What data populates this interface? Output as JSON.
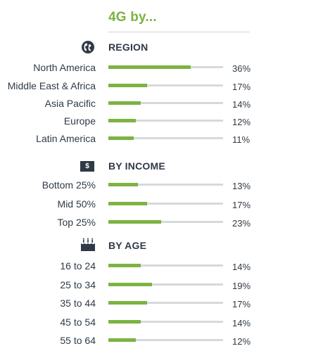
{
  "title": "4G by...",
  "sections": [
    {
      "header": "REGION",
      "icon": "globe-icon",
      "rows": [
        {
          "label": "North America",
          "value": 36,
          "text": "36%"
        },
        {
          "label": "Middle East & Africa",
          "value": 17,
          "text": "17%"
        },
        {
          "label": "Asia Pacific",
          "value": 14,
          "text": "14%"
        },
        {
          "label": "Europe",
          "value": 12,
          "text": "12%"
        },
        {
          "label": "Latin America",
          "value": 11,
          "text": "11%"
        }
      ]
    },
    {
      "header": "BY INCOME",
      "icon": "dollar-icon",
      "icon_text": "$",
      "rows": [
        {
          "label": "Bottom 25%",
          "value": 13,
          "text": "13%"
        },
        {
          "label": "Mid 50%",
          "value": 17,
          "text": "17%"
        },
        {
          "label": "Top 25%",
          "value": 23,
          "text": "23%"
        }
      ]
    },
    {
      "header": "BY AGE",
      "icon": "birthday-cake-icon",
      "rows": [
        {
          "label": "16 to 24",
          "value": 14,
          "text": "14%"
        },
        {
          "label": "25 to 34",
          "value": 19,
          "text": "19%"
        },
        {
          "label": "35 to 44",
          "value": 17,
          "text": "17%"
        },
        {
          "label": "45 to 54",
          "value": 14,
          "text": "14%"
        },
        {
          "label": "55 to 64",
          "value": 12,
          "text": "12%"
        }
      ]
    }
  ],
  "colors": {
    "accent": "#7cb342",
    "track": "#d6d9dc",
    "text": "#2f3a46"
  },
  "chart_data": {
    "type": "bar",
    "orientation": "horizontal",
    "title": "4G by...",
    "ylim": [
      0,
      50
    ],
    "groups": [
      {
        "name": "REGION",
        "categories": [
          "North America",
          "Middle East & Africa",
          "Asia Pacific",
          "Europe",
          "Latin America"
        ],
        "values": [
          36,
          17,
          14,
          12,
          11
        ]
      },
      {
        "name": "BY INCOME",
        "categories": [
          "Bottom 25%",
          "Mid 50%",
          "Top 25%"
        ],
        "values": [
          13,
          17,
          23
        ]
      },
      {
        "name": "BY AGE",
        "categories": [
          "16 to 24",
          "25 to 34",
          "35 to 44",
          "45 to 54",
          "55 to 64"
        ],
        "values": [
          14,
          19,
          17,
          14,
          12
        ]
      }
    ],
    "grid": false,
    "legend": "none"
  }
}
